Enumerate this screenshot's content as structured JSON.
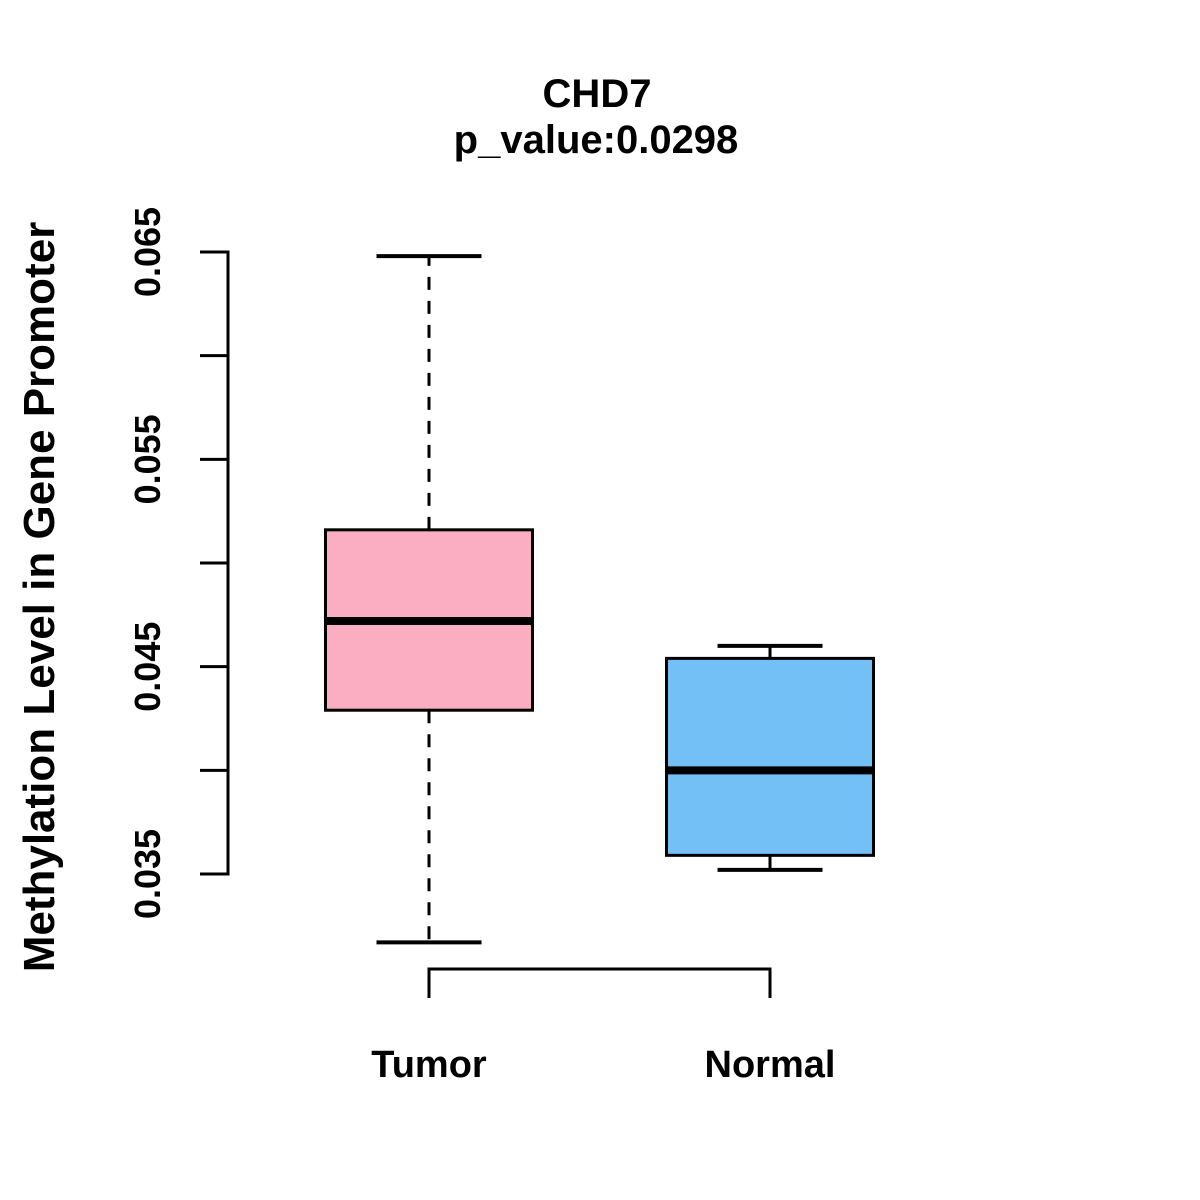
{
  "figure": {
    "background_color": "#ffffff",
    "text_color": "#000000"
  },
  "chart_data": {
    "type": "boxplot",
    "title": "CHD7",
    "subtitle": "p_value:0.0298",
    "p_value": 0.0298,
    "ylabel": "Methylation Level in Gene Promoter",
    "xlabel": "",
    "ylim": [
      0.035,
      0.065
    ],
    "grid": false,
    "legend": "none",
    "whisker_style": "dashed",
    "line_color": "#000000",
    "yticks": [
      {
        "value": 0.035,
        "label": "0.035"
      },
      {
        "value": 0.04,
        "label": ""
      },
      {
        "value": 0.045,
        "label": "0.045"
      },
      {
        "value": 0.05,
        "label": ""
      },
      {
        "value": 0.055,
        "label": "0.055"
      },
      {
        "value": 0.06,
        "label": ""
      },
      {
        "value": 0.065,
        "label": "0.065"
      }
    ],
    "categories": [
      "Tumor",
      "Normal"
    ],
    "series": [
      {
        "name": "Tumor",
        "fill_color": "#FBADC1",
        "whisker_low": 0.0317,
        "q1": 0.0429,
        "median": 0.0472,
        "q3": 0.0516,
        "whisker_high": 0.0648
      },
      {
        "name": "Normal",
        "fill_color": "#72C0F6",
        "whisker_low": 0.0352,
        "q1": 0.0359,
        "median": 0.04,
        "q3": 0.0454,
        "whisker_high": 0.046
      }
    ]
  }
}
